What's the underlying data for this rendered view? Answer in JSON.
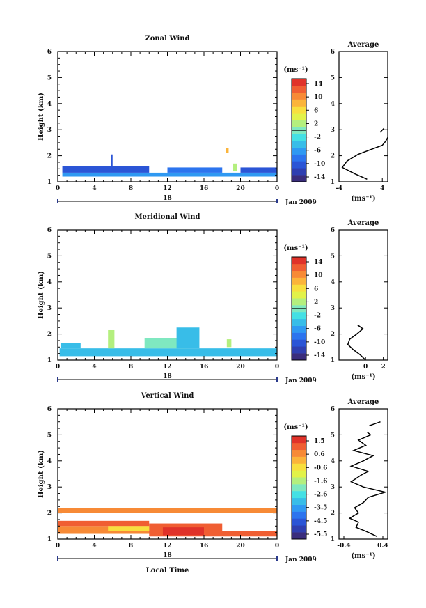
{
  "colors": {
    "scale": [
      "#3a2d7c",
      "#2f3fb0",
      "#2b55d6",
      "#2c74ee",
      "#2f99f2",
      "#38bde8",
      "#44e0e4",
      "#7fe8c0",
      "#b4ef7e",
      "#e2f249",
      "#f8df3e",
      "#fbb43a",
      "#f78a36",
      "#f05e32",
      "#e03229"
    ],
    "frame": "#000000"
  },
  "footer": {
    "xlabel": "Local Time"
  },
  "chart_data": [
    {
      "type": "heatmap",
      "title": "Zonal Wind",
      "ylabel": "Height (km)",
      "ylim": [
        1,
        6
      ],
      "y_ticks": [
        "1",
        "2",
        "3",
        "4",
        "5",
        "6"
      ],
      "xlim": [
        0,
        24
      ],
      "x_ticks": [
        "0",
        "4",
        "8",
        "12",
        "16",
        "20",
        "0"
      ],
      "date_axis": {
        "day": "18",
        "label": "Jan 2009"
      },
      "colorbar": {
        "unit": "(ms⁻¹)",
        "ticks": [
          "14",
          "10",
          "6",
          "2",
          "-2",
          "-6",
          "-10",
          "-14"
        ],
        "range": [
          -16,
          16
        ]
      },
      "zero_line": true,
      "regions": [
        {
          "x0": 0.5,
          "x1": 12,
          "y0": 1.2,
          "y1": 1.35,
          "value": -6
        },
        {
          "x0": 0.5,
          "x1": 10,
          "y0": 1.35,
          "y1": 1.6,
          "value": -10
        },
        {
          "x0": 12,
          "x1": 24,
          "y0": 1.2,
          "y1": 1.35,
          "value": -6
        },
        {
          "x0": 12,
          "x1": 18,
          "y0": 1.35,
          "y1": 1.55,
          "value": -9
        },
        {
          "x0": 20,
          "x1": 24,
          "y0": 1.35,
          "y1": 1.55,
          "value": -10
        },
        {
          "x0": 5.8,
          "x1": 6.0,
          "y0": 1.6,
          "y1": 2.05,
          "value": -10
        },
        {
          "x0": 19.2,
          "x1": 19.6,
          "y0": 1.4,
          "y1": 1.7,
          "value": 2
        },
        {
          "x0": 18.4,
          "x1": 18.7,
          "y0": 2.1,
          "y1": 2.3,
          "value": 8
        }
      ],
      "average": {
        "title": "Average",
        "xlabel": "(ms⁻¹)",
        "xlim": [
          -4,
          5
        ],
        "x_ticks": [
          "-4",
          "4"
        ],
        "ylim": [
          1,
          6
        ],
        "y_ticks": [
          "1",
          "2",
          "3",
          "4",
          "5",
          "6"
        ],
        "x": [
          1.2,
          -1.0,
          -3.4,
          -2.5,
          -0.5,
          2.0,
          4.0,
          4.6,
          5.0
        ],
        "y": [
          1.1,
          1.3,
          1.55,
          1.8,
          2.05,
          2.25,
          2.4,
          2.55,
          2.7
        ],
        "extra_segment": {
          "x": [
            3.6,
            4.3
          ],
          "y": [
            2.9,
            3.05
          ]
        }
      }
    },
    {
      "type": "heatmap",
      "title": "Meridional Wind",
      "ylabel": "Height (km)",
      "ylim": [
        1,
        6
      ],
      "y_ticks": [
        "1",
        "2",
        "3",
        "4",
        "5",
        "6"
      ],
      "xlim": [
        0,
        24
      ],
      "x_ticks": [
        "0",
        "4",
        "8",
        "12",
        "16",
        "20",
        "0"
      ],
      "date_axis": {
        "day": "18",
        "label": "Jan 2009"
      },
      "colorbar": {
        "unit": "(ms⁻¹)",
        "ticks": [
          "14",
          "10",
          "6",
          "2",
          "-2",
          "-6",
          "-10",
          "-14"
        ],
        "range": [
          -16,
          16
        ]
      },
      "zero_line": true,
      "regions": [
        {
          "x0": 0.2,
          "x1": 24,
          "y0": 1.15,
          "y1": 1.45,
          "value": -4
        },
        {
          "x0": 0.3,
          "x1": 2.5,
          "y0": 1.45,
          "y1": 1.65,
          "value": -5
        },
        {
          "x0": 5.5,
          "x1": 6.2,
          "y0": 1.45,
          "y1": 2.15,
          "value": 3
        },
        {
          "x0": 9.5,
          "x1": 14,
          "y0": 1.45,
          "y1": 1.85,
          "value": 1
        },
        {
          "x0": 13,
          "x1": 15.5,
          "y0": 1.45,
          "y1": 2.25,
          "value": -4
        },
        {
          "x0": 18.5,
          "x1": 19,
          "y0": 1.5,
          "y1": 1.8,
          "value": 3
        }
      ],
      "average": {
        "title": "Average",
        "xlabel": "(ms⁻¹)",
        "xlim": [
          -3,
          2.5
        ],
        "x_ticks": [
          "0",
          "2"
        ],
        "ylim": [
          1,
          6
        ],
        "y_ticks": [
          "1",
          "2",
          "3",
          "4",
          "5",
          "6"
        ],
        "x": [
          0.0,
          -0.6,
          -1.4,
          -2.0,
          -1.8,
          -1.0,
          -0.3,
          -0.9
        ],
        "y": [
          1.0,
          1.2,
          1.4,
          1.6,
          1.8,
          2.0,
          2.2,
          2.35
        ]
      }
    },
    {
      "type": "heatmap",
      "title": "Vertical Wind",
      "ylabel": "Height (km)",
      "ylim": [
        1,
        6
      ],
      "y_ticks": [
        "1",
        "2",
        "3",
        "4",
        "5",
        "6"
      ],
      "xlim": [
        0,
        24
      ],
      "x_ticks": [
        "0",
        "4",
        "8",
        "12",
        "16",
        "20",
        "0"
      ],
      "date_axis": {
        "day": "18",
        "label": "Jan 2009"
      },
      "colorbar": {
        "unit": "(ms⁻¹)",
        "ticks": [
          "1.5",
          "0.6",
          "-0.6",
          "-1.6",
          "-2.6",
          "-3.5",
          "-4.5",
          "-5.5"
        ],
        "range": [
          -6,
          2
        ]
      },
      "zero_line": false,
      "regions": [
        {
          "x0": 0,
          "x1": 24,
          "y0": 2.0,
          "y1": 2.2,
          "value": 0.9
        },
        {
          "x0": 0,
          "x1": 10,
          "y0": 1.2,
          "y1": 1.5,
          "value": 0.6
        },
        {
          "x0": 0,
          "x1": 10,
          "y0": 1.5,
          "y1": 1.7,
          "value": 1.0
        },
        {
          "x0": 10,
          "x1": 24,
          "y0": 1.1,
          "y1": 1.3,
          "value": 1.0
        },
        {
          "x0": 10,
          "x1": 18,
          "y0": 1.2,
          "y1": 1.6,
          "value": 1.2
        },
        {
          "x0": 11.5,
          "x1": 16,
          "y0": 1.15,
          "y1": 1.45,
          "value": 1.5
        },
        {
          "x0": 5.5,
          "x1": 10,
          "y0": 1.3,
          "y1": 1.5,
          "value": -0.3
        }
      ],
      "average": {
        "title": "Average",
        "xlabel": "(ms⁻¹)",
        "xlim": [
          -0.5,
          0.5
        ],
        "x_ticks": [
          "-0.4",
          "0.4"
        ],
        "ylim": [
          1,
          6
        ],
        "y_ticks": [
          "1",
          "2",
          "3",
          "4",
          "5",
          "6"
        ],
        "x": [
          0.28,
          0.05,
          -0.15,
          -0.1,
          -0.28,
          -0.1,
          -0.18,
          0.0,
          0.1,
          0.45,
          0.0,
          -0.25,
          -0.05,
          0.1,
          -0.25,
          0.0,
          0.2,
          -0.2,
          0.05,
          -0.1,
          0.15,
          0.08
        ],
        "y": [
          1.1,
          1.3,
          1.45,
          1.65,
          1.8,
          2.0,
          2.2,
          2.4,
          2.6,
          2.8,
          3.0,
          3.2,
          3.45,
          3.6,
          3.8,
          4.0,
          4.2,
          4.4,
          4.6,
          4.8,
          5.0,
          5.1
        ],
        "extra_segment": {
          "x": [
            0.12,
            0.35
          ],
          "y": [
            5.35,
            5.5
          ]
        }
      }
    }
  ]
}
